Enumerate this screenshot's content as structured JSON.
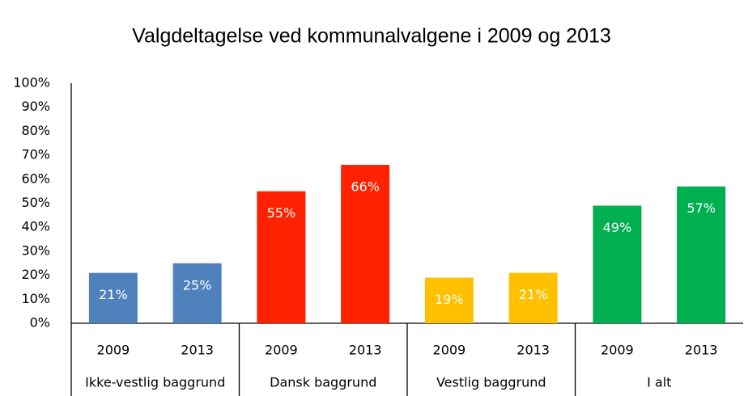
{
  "chart_data": {
    "type": "bar",
    "title": "Valgdeltagelse ved kommunalvalgene i 2009 og 2013",
    "ylim": [
      0,
      100
    ],
    "yticks": [
      {
        "value": 0,
        "label": "0%"
      },
      {
        "value": 10,
        "label": "10%"
      },
      {
        "value": 20,
        "label": "20%"
      },
      {
        "value": 30,
        "label": "30%"
      },
      {
        "value": 40,
        "label": "40%"
      },
      {
        "value": 50,
        "label": "50%"
      },
      {
        "value": 60,
        "label": "60%"
      },
      {
        "value": 70,
        "label": "70%"
      },
      {
        "value": 80,
        "label": "80%"
      },
      {
        "value": 90,
        "label": "90%"
      },
      {
        "value": 100,
        "label": "100%"
      }
    ],
    "groups": [
      {
        "name": "Ikke-vestlig baggrund",
        "color": "#4f81bd",
        "categories": [
          "2009",
          "2013"
        ],
        "values": [
          21,
          25
        ],
        "value_labels": [
          "21%",
          "25%"
        ]
      },
      {
        "name": "Dansk baggrund",
        "color": "#ff2200",
        "categories": [
          "2009",
          "2013"
        ],
        "values": [
          55,
          66
        ],
        "value_labels": [
          "55%",
          "66%"
        ]
      },
      {
        "name": "Vestlig baggrund",
        "color": "#ffc000",
        "categories": [
          "2009",
          "2013"
        ],
        "values": [
          19,
          21
        ],
        "value_labels": [
          "19%",
          "21%"
        ]
      },
      {
        "name": "I alt",
        "color": "#00b050",
        "categories": [
          "2009",
          "2013"
        ],
        "values": [
          49,
          57
        ],
        "value_labels": [
          "49%",
          "57%"
        ]
      }
    ]
  }
}
